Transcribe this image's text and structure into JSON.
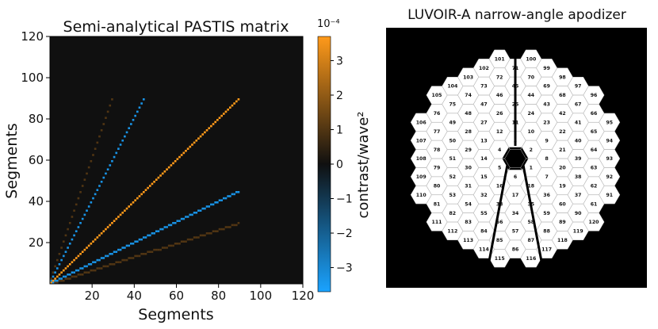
{
  "chart_data": [
    {
      "type": "heatmap",
      "title": "Semi-analytical PASTIS matrix",
      "xlabel": "Segments",
      "ylabel": "Segments",
      "xlim": [
        0,
        120
      ],
      "ylim": [
        0,
        120
      ],
      "xticks": [
        "20",
        "40",
        "60",
        "80",
        "100",
        "120"
      ],
      "yticks": [
        "20",
        "40",
        "60",
        "80",
        "100",
        "120"
      ],
      "colorbar": {
        "label": "contrast/wave²",
        "exponent_label": "10⁻⁴",
        "range": [
          -3.7,
          3.7
        ],
        "ticks": [
          "3",
          "2",
          "1",
          "0",
          "−1",
          "−2",
          "−3"
        ],
        "tick_values": [
          3,
          2,
          1,
          0,
          -1,
          -2,
          -3
        ],
        "colors": {
          "negative": "#1aa3ff",
          "zero": "#101010",
          "positive": "#ff9a1a"
        }
      },
      "features": {
        "diagonal_extent": [
          0,
          90
        ],
        "diagonal_value": 3.7,
        "negative_rays_slope": [
          2.0,
          0.5
        ],
        "negative_ray_value": -3.3,
        "faint_positive_rays_slope": [
          3.0,
          0.33
        ],
        "faint_positive_value": 1.0,
        "upper_block_start": 90
      }
    }
  ],
  "apodizer": {
    "title": "LUVOIR-A narrow-angle apodizer",
    "segments": [
      {
        "n": "1",
        "q": 1,
        "r": -1
      },
      {
        "n": "2",
        "q": 1,
        "r": 0
      },
      {
        "n": "3",
        "q": 0,
        "r": 1
      },
      {
        "n": "4",
        "q": -1,
        "r": 1
      },
      {
        "n": "5",
        "q": -1,
        "r": 0
      },
      {
        "n": "6",
        "q": 0,
        "r": -1
      },
      {
        "n": "7",
        "q": 2,
        "r": -2
      },
      {
        "n": "8",
        "q": 2,
        "r": -1
      },
      {
        "n": "9",
        "q": 2,
        "r": 0
      },
      {
        "n": "10",
        "q": 1,
        "r": 1
      },
      {
        "n": "11",
        "q": 0,
        "r": 2
      },
      {
        "n": "12",
        "q": -1,
        "r": 2
      },
      {
        "n": "13",
        "q": -2,
        "r": 2
      },
      {
        "n": "14",
        "q": -2,
        "r": 1
      },
      {
        "n": "15",
        "q": -2,
        "r": 0
      },
      {
        "n": "16",
        "q": -1,
        "r": -1
      },
      {
        "n": "17",
        "q": 0,
        "r": -2
      },
      {
        "n": "18",
        "q": 1,
        "r": -2
      },
      {
        "n": "19",
        "q": 3,
        "r": -3
      },
      {
        "n": "20",
        "q": 3,
        "r": -2
      },
      {
        "n": "21",
        "q": 3,
        "r": -1
      },
      {
        "n": "22",
        "q": 3,
        "r": 0
      },
      {
        "n": "23",
        "q": 2,
        "r": 1
      },
      {
        "n": "24",
        "q": 1,
        "r": 2
      },
      {
        "n": "25",
        "q": 0,
        "r": 3
      },
      {
        "n": "26",
        "q": -1,
        "r": 3
      },
      {
        "n": "27",
        "q": -2,
        "r": 3
      },
      {
        "n": "28",
        "q": -3,
        "r": 3
      },
      {
        "n": "29",
        "q": -3,
        "r": 2
      },
      {
        "n": "30",
        "q": -3,
        "r": 1
      },
      {
        "n": "31",
        "q": -3,
        "r": 0
      },
      {
        "n": "32",
        "q": -2,
        "r": -1
      },
      {
        "n": "33",
        "q": -1,
        "r": -2
      },
      {
        "n": "34",
        "q": 0,
        "r": -3
      },
      {
        "n": "35",
        "q": 1,
        "r": -3
      },
      {
        "n": "36",
        "q": 2,
        "r": -3
      },
      {
        "n": "37",
        "q": 4,
        "r": -4
      },
      {
        "n": "38",
        "q": 4,
        "r": -3
      },
      {
        "n": "39",
        "q": 4,
        "r": -2
      },
      {
        "n": "40",
        "q": 4,
        "r": -1
      },
      {
        "n": "41",
        "q": 4,
        "r": 0
      },
      {
        "n": "42",
        "q": 3,
        "r": 1
      },
      {
        "n": "43",
        "q": 2,
        "r": 2
      },
      {
        "n": "44",
        "q": 1,
        "r": 3
      },
      {
        "n": "45",
        "q": 0,
        "r": 4
      },
      {
        "n": "46",
        "q": -1,
        "r": 4
      },
      {
        "n": "47",
        "q": -2,
        "r": 4
      },
      {
        "n": "48",
        "q": -3,
        "r": 4
      },
      {
        "n": "49",
        "q": -4,
        "r": 4
      },
      {
        "n": "50",
        "q": -4,
        "r": 3
      },
      {
        "n": "51",
        "q": -4,
        "r": 2
      },
      {
        "n": "52",
        "q": -4,
        "r": 1
      },
      {
        "n": "53",
        "q": -4,
        "r": 0
      },
      {
        "n": "54",
        "q": -3,
        "r": -1
      },
      {
        "n": "55",
        "q": -2,
        "r": -2
      },
      {
        "n": "56",
        "q": -1,
        "r": -3
      },
      {
        "n": "57",
        "q": 0,
        "r": -4
      },
      {
        "n": "58",
        "q": 1,
        "r": -4
      },
      {
        "n": "59",
        "q": 2,
        "r": -4
      },
      {
        "n": "60",
        "q": 3,
        "r": -4
      },
      {
        "n": "61",
        "q": 5,
        "r": -5
      },
      {
        "n": "62",
        "q": 5,
        "r": -4
      },
      {
        "n": "63",
        "q": 5,
        "r": -3
      },
      {
        "n": "64",
        "q": 5,
        "r": -2
      },
      {
        "n": "65",
        "q": 5,
        "r": -1
      },
      {
        "n": "66",
        "q": 5,
        "r": 0
      },
      {
        "n": "67",
        "q": 4,
        "r": 1
      },
      {
        "n": "68",
        "q": 3,
        "r": 2
      },
      {
        "n": "69",
        "q": 2,
        "r": 3
      },
      {
        "n": "70",
        "q": 1,
        "r": 4
      },
      {
        "n": "71",
        "q": 0,
        "r": 5
      },
      {
        "n": "72",
        "q": -1,
        "r": 5
      },
      {
        "n": "73",
        "q": -2,
        "r": 5
      },
      {
        "n": "74",
        "q": -3,
        "r": 5
      },
      {
        "n": "75",
        "q": -4,
        "r": 5
      },
      {
        "n": "76",
        "q": -5,
        "r": 5
      },
      {
        "n": "77",
        "q": -5,
        "r": 4
      },
      {
        "n": "78",
        "q": -5,
        "r": 3
      },
      {
        "n": "79",
        "q": -5,
        "r": 2
      },
      {
        "n": "80",
        "q": -5,
        "r": 1
      },
      {
        "n": "81",
        "q": -5,
        "r": 0
      },
      {
        "n": "82",
        "q": -4,
        "r": -1
      },
      {
        "n": "83",
        "q": -3,
        "r": -2
      },
      {
        "n": "84",
        "q": -2,
        "r": -3
      },
      {
        "n": "85",
        "q": -1,
        "r": -4
      },
      {
        "n": "86",
        "q": 0,
        "r": -5
      },
      {
        "n": "87",
        "q": 1,
        "r": -5
      },
      {
        "n": "88",
        "q": 2,
        "r": -5
      },
      {
        "n": "89",
        "q": 3,
        "r": -5
      },
      {
        "n": "90",
        "q": 4,
        "r": -5
      },
      {
        "n": "91",
        "q": 6,
        "r": -5
      },
      {
        "n": "92",
        "q": 6,
        "r": -4
      },
      {
        "n": "93",
        "q": 6,
        "r": -3
      },
      {
        "n": "94",
        "q": 6,
        "r": -2
      },
      {
        "n": "95",
        "q": 6,
        "r": -1
      },
      {
        "n": "96",
        "q": 5,
        "r": 1
      },
      {
        "n": "97",
        "q": 4,
        "r": 2
      },
      {
        "n": "98",
        "q": 3,
        "r": 3
      },
      {
        "n": "99",
        "q": 2,
        "r": 4
      },
      {
        "n": "100",
        "q": 1,
        "r": 5
      },
      {
        "n": "101",
        "q": -1,
        "r": 6
      },
      {
        "n": "102",
        "q": -2,
        "r": 6
      },
      {
        "n": "103",
        "q": -3,
        "r": 6
      },
      {
        "n": "104",
        "q": -4,
        "r": 6
      },
      {
        "n": "105",
        "q": -5,
        "r": 6
      },
      {
        "n": "106",
        "q": -6,
        "r": 5
      },
      {
        "n": "107",
        "q": -6,
        "r": 4
      },
      {
        "n": "108",
        "q": -6,
        "r": 3
      },
      {
        "n": "109",
        "q": -6,
        "r": 2
      },
      {
        "n": "110",
        "q": -6,
        "r": 1
      },
      {
        "n": "111",
        "q": -5,
        "r": -1
      },
      {
        "n": "112",
        "q": -4,
        "r": -2
      },
      {
        "n": "113",
        "q": -3,
        "r": -3
      },
      {
        "n": "114",
        "q": -2,
        "r": -4
      },
      {
        "n": "115",
        "q": -1,
        "r": -5
      },
      {
        "n": "116",
        "q": 1,
        "r": -6
      },
      {
        "n": "117",
        "q": 2,
        "r": -6
      },
      {
        "n": "118",
        "q": 3,
        "r": -6
      },
      {
        "n": "119",
        "q": 4,
        "r": -6
      },
      {
        "n": "120",
        "q": 5,
        "r": -6
      }
    ]
  }
}
